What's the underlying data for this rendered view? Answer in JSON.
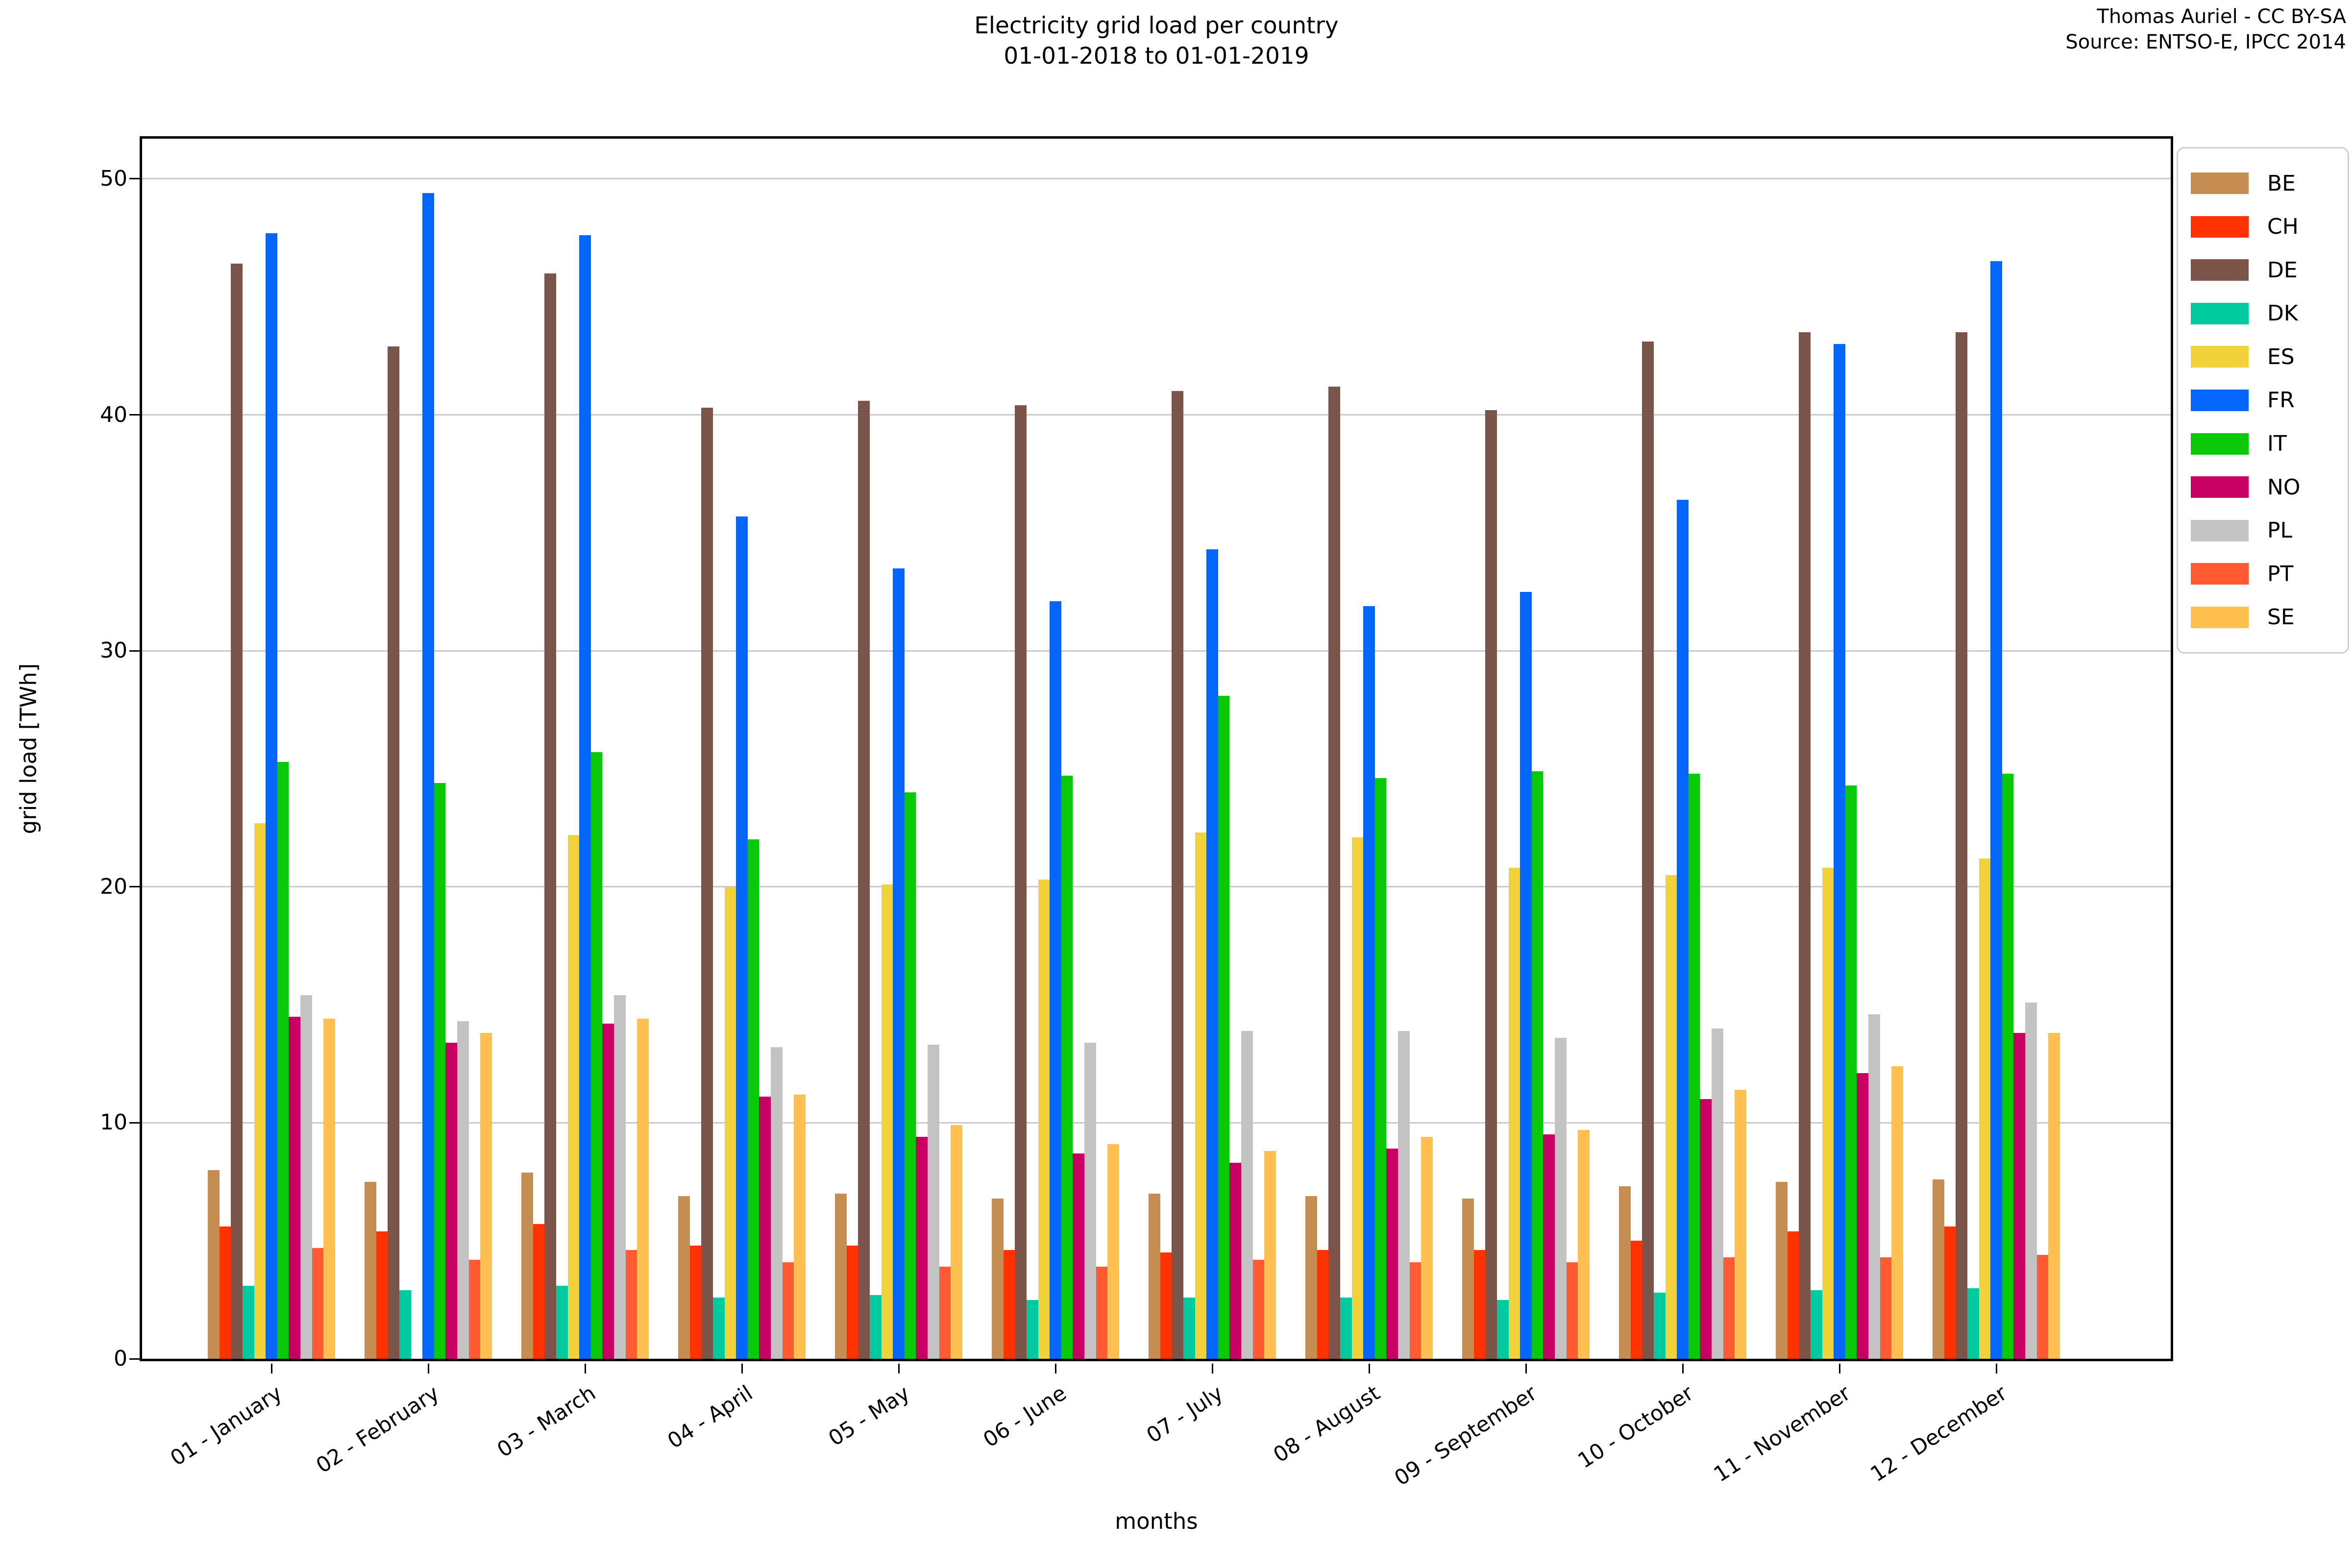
{
  "header": {
    "title_line1": "Electricity grid load per country",
    "title_line2": "01-01-2018 to 01-01-2019"
  },
  "attribution": {
    "line1": "Thomas Auriel - CC BY-SA",
    "line2": "Source: ENTSO-E, IPCC 2014"
  },
  "chart_data": {
    "type": "bar",
    "title": "Electricity grid load per country 01-01-2018 to 01-01-2019",
    "xlabel": "months",
    "ylabel": "grid load [TWh]",
    "ylim": [
      0,
      51.7
    ],
    "yticks": [
      0,
      10,
      20,
      30,
      40,
      50
    ],
    "grid": "horizontal light gray",
    "legend_position": "outside right, top",
    "note": "ES has no bar (missing data) in 02 - February",
    "categories": [
      "01 - January",
      "02 - February",
      "03 - March",
      "04 - April",
      "05 - May",
      "06 - June",
      "07 - July",
      "08 - August",
      "09 - September",
      "10 - October",
      "11 - November",
      "12 - December"
    ],
    "series": [
      {
        "name": "BE",
        "color": "#C68D52",
        "values": [
          8.0,
          7.5,
          7.9,
          6.9,
          7.0,
          6.8,
          7.0,
          6.9,
          6.8,
          7.3,
          7.5,
          7.6
        ]
      },
      {
        "name": "CH",
        "color": "#FF3200",
        "values": [
          5.6,
          5.4,
          5.7,
          4.8,
          4.8,
          4.6,
          4.5,
          4.6,
          4.6,
          5.0,
          5.4,
          5.6
        ]
      },
      {
        "name": "DE",
        "color": "#7B5549",
        "values": [
          46.4,
          42.9,
          46.0,
          40.3,
          40.6,
          40.4,
          41.0,
          41.2,
          40.2,
          43.1,
          43.5,
          43.5
        ]
      },
      {
        "name": "DK",
        "color": "#00CBA0",
        "values": [
          3.1,
          2.9,
          3.1,
          2.6,
          2.7,
          2.5,
          2.6,
          2.6,
          2.5,
          2.8,
          2.9,
          3.0
        ]
      },
      {
        "name": "ES",
        "color": "#F2D23B",
        "values": [
          22.7,
          null,
          22.2,
          20.0,
          20.1,
          20.3,
          22.3,
          22.1,
          20.8,
          20.5,
          20.8,
          21.2
        ]
      },
      {
        "name": "FR",
        "color": "#0566FC",
        "values": [
          47.7,
          49.4,
          47.6,
          35.7,
          33.5,
          32.1,
          34.3,
          31.9,
          32.5,
          36.4,
          43.0,
          46.5
        ]
      },
      {
        "name": "IT",
        "color": "#09C909",
        "values": [
          25.3,
          24.4,
          25.7,
          22.0,
          24.0,
          24.7,
          28.1,
          24.6,
          24.9,
          24.8,
          24.3,
          24.8
        ]
      },
      {
        "name": "NO",
        "color": "#C80064",
        "values": [
          14.5,
          13.4,
          14.2,
          11.1,
          9.4,
          8.7,
          8.3,
          8.9,
          9.5,
          11.0,
          12.1,
          13.8
        ]
      },
      {
        "name": "PL",
        "color": "#C3C3C3",
        "values": [
          15.4,
          14.3,
          15.4,
          13.2,
          13.3,
          13.4,
          13.9,
          13.9,
          13.6,
          14.0,
          14.6,
          15.1
        ]
      },
      {
        "name": "PT",
        "color": "#FF5A31",
        "values": [
          4.7,
          4.2,
          4.6,
          4.1,
          3.9,
          3.9,
          4.2,
          4.1,
          4.1,
          4.3,
          4.3,
          4.4
        ]
      },
      {
        "name": "SE",
        "color": "#FFC050",
        "values": [
          14.4,
          13.8,
          14.4,
          11.2,
          9.9,
          9.1,
          8.8,
          9.4,
          9.7,
          11.4,
          12.4,
          13.8
        ]
      }
    ]
  }
}
